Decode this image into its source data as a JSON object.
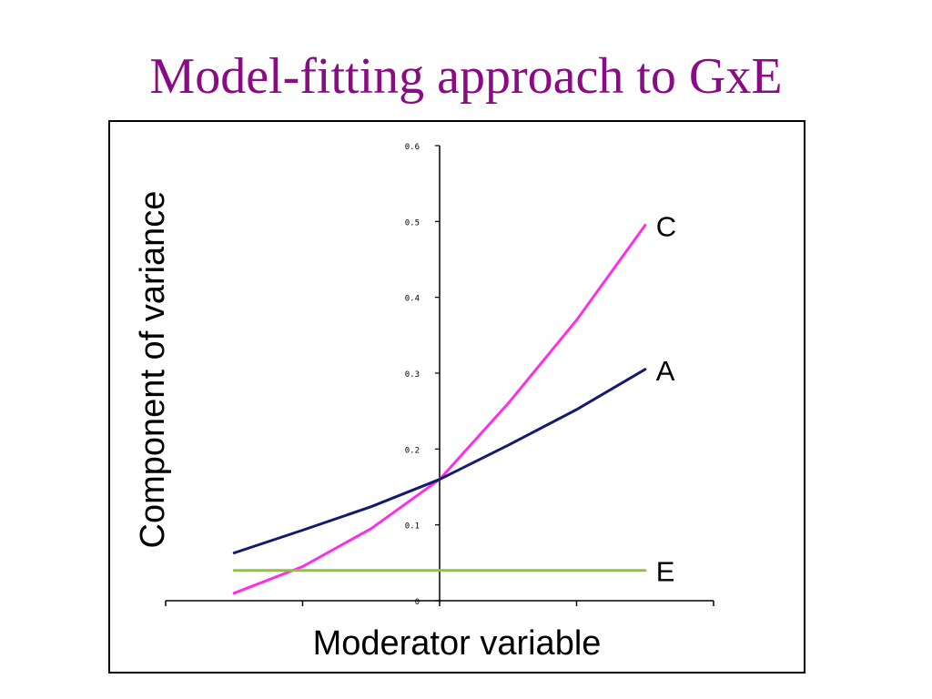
{
  "slide": {
    "title": "Model-fitting approach to GxE"
  },
  "colors": {
    "title": "#8b0a85",
    "C": "#ff2ee6",
    "A": "#141a6e",
    "E": "#8cc43c",
    "axis": "#000000"
  },
  "chart_data": {
    "type": "line",
    "xlabel": "Moderator variable",
    "ylabel": "Component of variance",
    "ylim": [
      0,
      0.6
    ],
    "yticks": [
      0,
      0.1,
      0.2,
      0.3,
      0.4,
      0.5,
      0.6
    ],
    "ytick_labels": [
      "0",
      "0.1",
      "0.2",
      "0.3",
      "0.4",
      "0.5",
      "0.6"
    ],
    "xlim": [
      -2,
      2
    ],
    "xticks": [
      -2,
      -1,
      0,
      1,
      2
    ],
    "grid": false,
    "x": [
      -1.5,
      -1.0,
      -0.5,
      0,
      0.5,
      1.0,
      1.5
    ],
    "series": [
      {
        "name": "C",
        "values": [
          0.01,
          0.045,
          0.095,
          0.16,
          0.26,
          0.37,
          0.495
        ]
      },
      {
        "name": "A",
        "values": [
          0.063,
          0.093,
          0.124,
          0.16,
          0.205,
          0.252,
          0.305
        ]
      },
      {
        "name": "E",
        "values": [
          0.04,
          0.04,
          0.04,
          0.04,
          0.04,
          0.04,
          0.04
        ]
      }
    ]
  }
}
